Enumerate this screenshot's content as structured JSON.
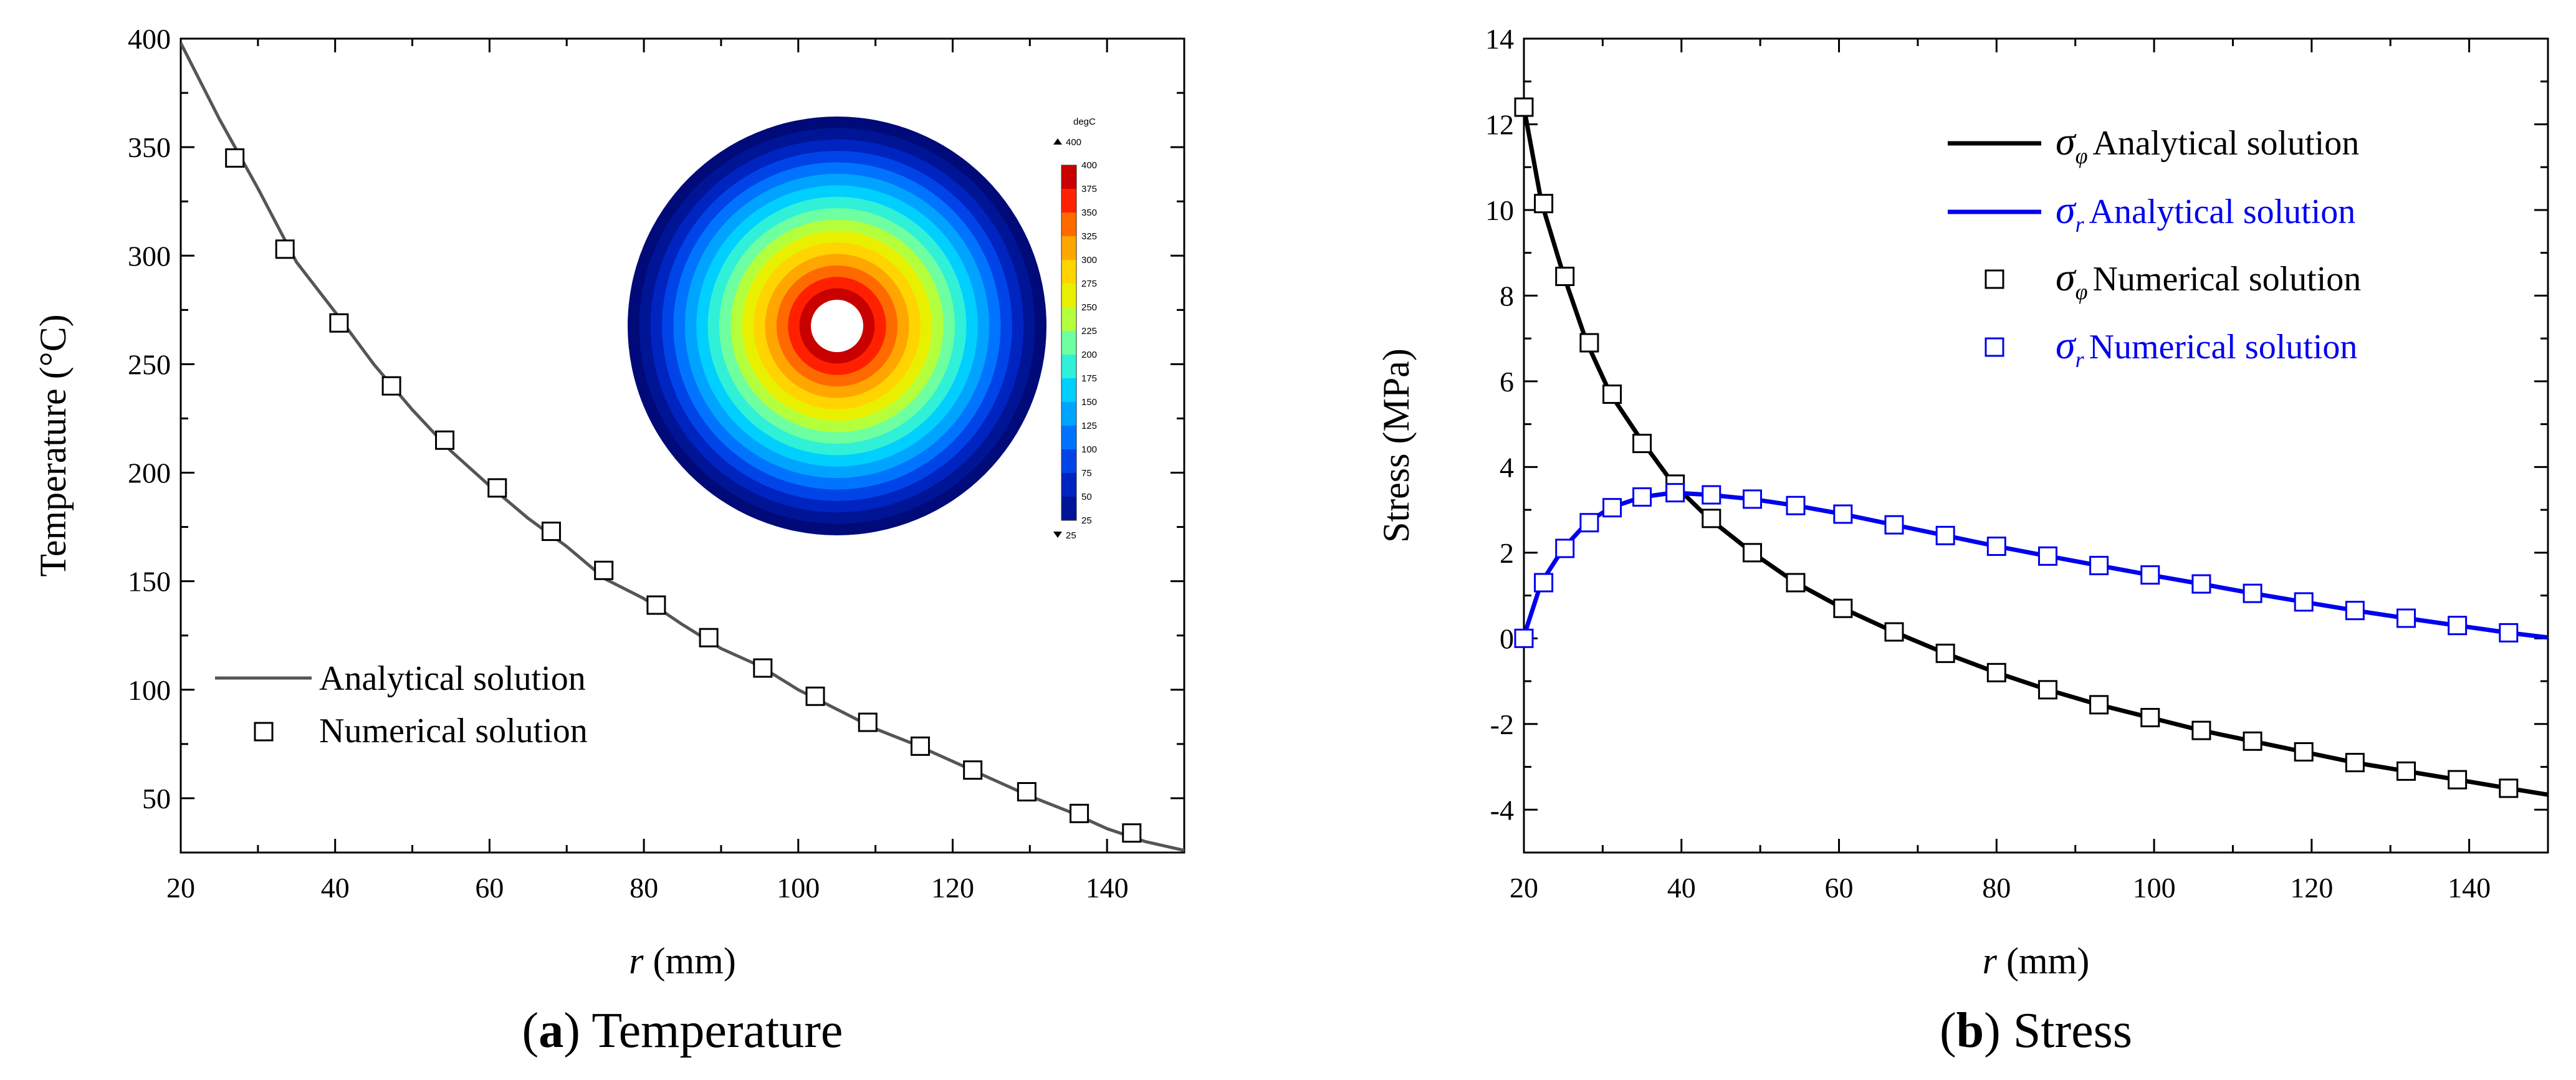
{
  "chart_data": [
    {
      "type": "line",
      "caption": {
        "letter": "a",
        "text": "Temperature"
      },
      "xlabel": {
        "var": "r",
        "unit": "(mm)"
      },
      "ylabel": "Temperature (°C)",
      "xlim": [
        20,
        150
      ],
      "ylim": [
        25,
        400
      ],
      "xticks": [
        20,
        40,
        60,
        80,
        100,
        120,
        140
      ],
      "yticks": [
        50,
        100,
        150,
        200,
        250,
        300,
        350,
        400
      ],
      "legend": {
        "position": "bottom-left",
        "entries": [
          "Analytical solution",
          "Numerical solution"
        ]
      },
      "series": [
        {
          "name": "Analytical solution",
          "style": "line",
          "color": "#555555",
          "x": [
            20,
            25,
            30,
            35,
            40,
            45,
            50,
            55,
            60,
            65,
            70,
            75,
            80,
            85,
            90,
            95,
            100,
            105,
            110,
            115,
            120,
            125,
            130,
            135,
            140,
            145,
            150
          ],
          "y": [
            398,
            363,
            331,
            297,
            274,
            250,
            229,
            210,
            194,
            179,
            166,
            151,
            142,
            130,
            119,
            111,
            100,
            91,
            82,
            75,
            67,
            59,
            51,
            44,
            36,
            30,
            26
          ]
        },
        {
          "name": "Numerical solution",
          "style": "marker",
          "color": "#000000",
          "x": [
            27,
            33.5,
            40.5,
            47.3,
            54.2,
            61,
            68,
            74.8,
            81.6,
            88.4,
            95.4,
            102.2,
            109,
            115.8,
            122.6,
            129.6,
            136.4,
            143.2
          ],
          "y": [
            345,
            303,
            269,
            240,
            215,
            193,
            173,
            155,
            139,
            124,
            110,
            97,
            85,
            74,
            63,
            53,
            43,
            34
          ]
        }
      ],
      "inset": {
        "unit": "degC",
        "max_label": "400",
        "min_label": "25",
        "ticks": [
          "400",
          "375",
          "350",
          "325",
          "300",
          "275",
          "250",
          "225",
          "200",
          "175",
          "150",
          "125",
          "100",
          "75",
          "50",
          "25"
        ],
        "colors": [
          "#c80000",
          "#ff2000",
          "#ff6a00",
          "#ffa600",
          "#ffd400",
          "#e8f000",
          "#b4ff3c",
          "#6effa0",
          "#30f0d8",
          "#00cfff",
          "#00a4ff",
          "#0074ff",
          "#0044e8",
          "#0024c0",
          "#001496",
          "#000a78"
        ]
      }
    },
    {
      "type": "line",
      "caption": {
        "letter": "b",
        "text": "Stress"
      },
      "xlabel": {
        "var": "r",
        "unit": "(mm)"
      },
      "ylabel": "Stress (MPa)",
      "xlim": [
        20,
        150
      ],
      "ylim": [
        -5,
        14
      ],
      "xticks": [
        20,
        40,
        60,
        80,
        100,
        120,
        140
      ],
      "yticks": [
        -4,
        -2,
        0,
        2,
        4,
        6,
        8,
        10,
        12,
        14
      ],
      "legend": {
        "position": "top-right",
        "entries": [
          {
            "sym": "σ",
            "sub": "φ",
            "text": "Analytical solution",
            "color": "#000000",
            "style": "line"
          },
          {
            "sym": "σ",
            "sub": "r",
            "text": "Analytical solution",
            "color": "#0000ee",
            "style": "line"
          },
          {
            "sym": "σ",
            "sub": "φ",
            "text": "Numerical solution",
            "color": "#000000",
            "style": "marker"
          },
          {
            "sym": "σ",
            "sub": "r",
            "text": "Numerical solution",
            "color": "#0000ee",
            "style": "marker"
          }
        ]
      },
      "series": [
        {
          "name": "σφ Analytical solution",
          "style": "line",
          "color": "#000000",
          "x": [
            20,
            22.2,
            25,
            28,
            31,
            35,
            39,
            43.5,
            49,
            54.5,
            60.5,
            67,
            73.5,
            80,
            86.5,
            93,
            99.5,
            106,
            112.5,
            119,
            125.5,
            132,
            138.5,
            145,
            150
          ],
          "y": [
            12.4,
            10.2,
            8.5,
            6.9,
            5.7,
            4.6,
            3.6,
            2.8,
            2.0,
            1.3,
            0.7,
            0.15,
            -0.35,
            -0.8,
            -1.2,
            -1.55,
            -1.85,
            -2.15,
            -2.4,
            -2.65,
            -2.9,
            -3.1,
            -3.3,
            -3.5,
            -3.65
          ]
        },
        {
          "name": "σr Analytical solution",
          "style": "line",
          "color": "#0000ee",
          "x": [
            20,
            22.2,
            25,
            28,
            31,
            35,
            39,
            43.5,
            49,
            54.5,
            60.5,
            67,
            73.5,
            80,
            86.5,
            93,
            99.5,
            106,
            112.5,
            119,
            125.5,
            132,
            138.5,
            145,
            150
          ],
          "y": [
            0.05,
            1.3,
            2.1,
            2.7,
            3.05,
            3.3,
            3.4,
            3.35,
            3.25,
            3.1,
            2.9,
            2.65,
            2.4,
            2.15,
            1.92,
            1.7,
            1.48,
            1.27,
            1.05,
            0.85,
            0.65,
            0.47,
            0.3,
            0.13,
            0.02
          ]
        },
        {
          "name": "σφ Numerical solution",
          "style": "marker",
          "color": "#000000",
          "x": [
            20,
            22.5,
            25.2,
            28.3,
            31.2,
            35,
            39.2,
            43.8,
            49,
            54.5,
            60.5,
            67,
            73.5,
            80,
            86.5,
            93,
            99.5,
            106,
            112.5,
            119,
            125.5,
            132,
            138.5,
            145
          ],
          "y": [
            12.4,
            10.15,
            8.45,
            6.9,
            5.7,
            4.55,
            3.6,
            2.8,
            2.0,
            1.3,
            0.7,
            0.15,
            -0.35,
            -0.8,
            -1.2,
            -1.55,
            -1.85,
            -2.15,
            -2.4,
            -2.65,
            -2.9,
            -3.1,
            -3.3,
            -3.5
          ]
        },
        {
          "name": "σr Numerical solution",
          "style": "marker",
          "color": "#0000ee",
          "x": [
            20,
            22.5,
            25.2,
            28.3,
            31.2,
            35,
            39.2,
            43.8,
            49,
            54.5,
            60.5,
            67,
            73.5,
            80,
            86.5,
            93,
            99.5,
            106,
            112.5,
            119,
            125.5,
            132,
            138.5,
            145
          ],
          "y": [
            0.0,
            1.3,
            2.1,
            2.7,
            3.05,
            3.3,
            3.4,
            3.35,
            3.25,
            3.1,
            2.9,
            2.65,
            2.4,
            2.15,
            1.92,
            1.7,
            1.48,
            1.27,
            1.05,
            0.85,
            0.65,
            0.47,
            0.3,
            0.13
          ]
        }
      ]
    }
  ]
}
